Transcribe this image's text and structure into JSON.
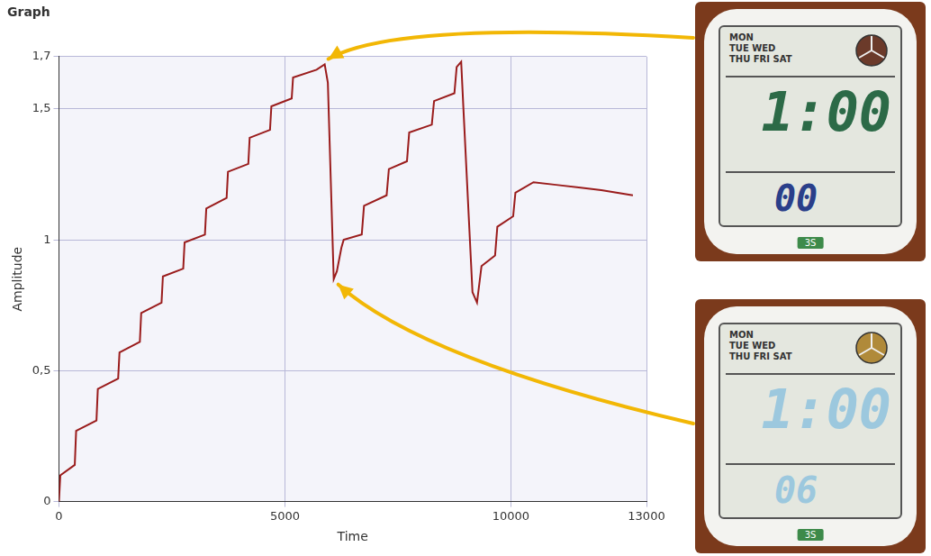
{
  "chart_data": {
    "type": "line",
    "title": "Graph",
    "x_label": "Time",
    "y_label": "Amplitude",
    "x": [
      0,
      30,
      350,
      380,
      830,
      860,
      1310,
      1340,
      1790,
      1820,
      2270,
      2300,
      2750,
      2780,
      3230,
      3260,
      3710,
      3740,
      4190,
      4220,
      4670,
      4700,
      5150,
      5180,
      5700,
      5880,
      5950,
      6080,
      6150,
      6250,
      6300,
      6700,
      6750,
      7250,
      7300,
      7700,
      7750,
      8250,
      8300,
      8750,
      8800,
      8900,
      8950,
      9150,
      9250,
      9350,
      9650,
      9700,
      10050,
      10100,
      10500,
      11000,
      11500,
      12000,
      12700
    ],
    "values": [
      0,
      0.1,
      0.14,
      0.27,
      0.31,
      0.43,
      0.47,
      0.57,
      0.61,
      0.72,
      0.76,
      0.86,
      0.89,
      0.99,
      1.02,
      1.12,
      1.16,
      1.26,
      1.29,
      1.39,
      1.42,
      1.51,
      1.54,
      1.62,
      1.65,
      1.67,
      1.6,
      0.85,
      0.88,
      0.97,
      1.0,
      1.02,
      1.13,
      1.17,
      1.27,
      1.3,
      1.41,
      1.44,
      1.53,
      1.56,
      1.66,
      1.68,
      1.5,
      0.8,
      0.76,
      0.9,
      0.94,
      1.05,
      1.09,
      1.18,
      1.22,
      1.21,
      1.2,
      1.19,
      1.17
    ],
    "color": "#9a1c1c",
    "xlim": [
      0,
      13000
    ],
    "xticks": [
      0,
      5000,
      10000,
      13000
    ],
    "ylim": [
      0,
      1.7
    ],
    "yticks": [
      0,
      {
        "value": 0.5,
        "label": "0,5"
      },
      1,
      {
        "value": 1.5,
        "label": "1,5"
      },
      {
        "value": 1.7,
        "label": "1,7"
      }
    ],
    "grid": true,
    "annotations": [
      {
        "x": 5880,
        "y": 1.67,
        "days": [
          "MON",
          "TUE",
          "WED",
          "THU",
          "FRI",
          "SAT"
        ],
        "time": "1:00",
        "seconds": "00",
        "badge": "3S",
        "color": "#2c6a47"
      },
      {
        "x": 6080,
        "y": 0.85,
        "days": [
          "MON",
          "TUE",
          "WED",
          "THU",
          "FRI",
          "SAT"
        ],
        "time": "1:00",
        "seconds": "06",
        "badge": "3S",
        "color": "#9cc8de"
      }
    ]
  }
}
